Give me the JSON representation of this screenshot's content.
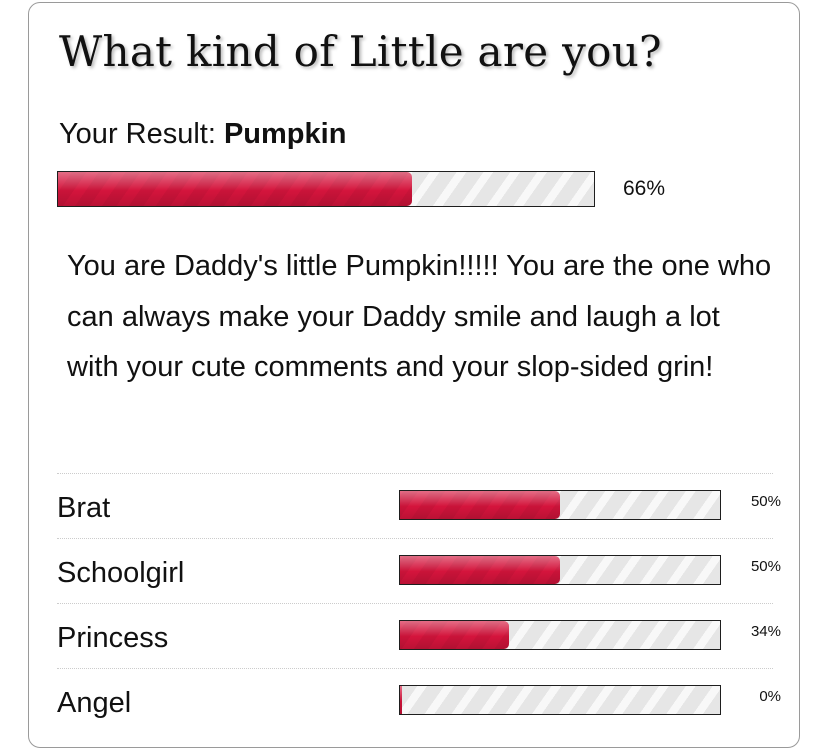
{
  "quiz": {
    "title": "What kind of Little are you?",
    "result_prefix": "Your Result: ",
    "result_name": "Pumpkin",
    "result_percent": 66,
    "result_percent_label": "66%",
    "description": "You are Daddy's little Pumpkin!!!!! You are the one who can always make your Daddy smile and laugh a lot with your cute comments and your slop-sided grin!"
  },
  "other_results": [
    {
      "label": "Brat",
      "percent": 50,
      "percent_label": "50%"
    },
    {
      "label": "Schoolgirl",
      "percent": 50,
      "percent_label": "50%"
    },
    {
      "label": "Princess",
      "percent": 34,
      "percent_label": "34%"
    },
    {
      "label": "Angel",
      "percent": 0,
      "percent_label": "0%"
    }
  ],
  "colors": {
    "bar_fill": "#d4143c",
    "bar_track": "#e4e4e4",
    "card_border": "#9a9a9a"
  }
}
